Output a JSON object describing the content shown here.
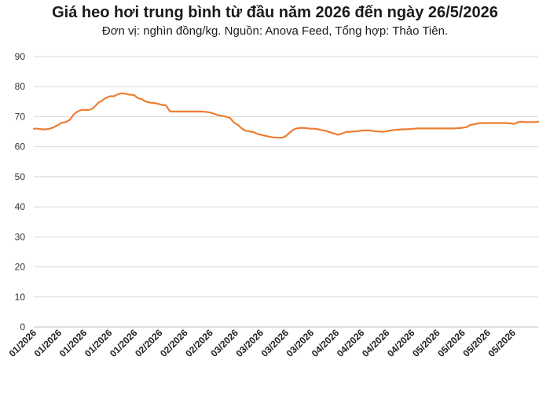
{
  "chart_data": {
    "type": "line",
    "title": "Giá heo hơi trung bình từ đầu năm 2026 đến ngày 26/5/2026",
    "subtitle": "Đơn vị: nghìn đồng/kg. Nguồn: Anova Feed, Tổng hợp: Thảo Tiên.",
    "xlabel": "",
    "ylabel": "",
    "ylim": [
      0,
      90
    ],
    "yticks": [
      0,
      10,
      20,
      30,
      40,
      50,
      60,
      70,
      80,
      90
    ],
    "xtick_labels": [
      "01/2026",
      "01/2026",
      "01/2026",
      "01/2026",
      "01/2026",
      "02/2026",
      "02/2026",
      "02/2026",
      "03/2026",
      "03/2026",
      "03/2026",
      "03/2026",
      "04/2026",
      "04/2026",
      "04/2026",
      "04/2026",
      "05/2026",
      "05/2026",
      "05/2026",
      "05/2026"
    ],
    "grid": "horizontal",
    "line_color": "#ED7D31",
    "grid_color": "#d9d9d9",
    "series": [
      {
        "values": [
          66.0,
          66.0,
          65.8,
          65.8,
          66.0,
          66.5,
          67.2,
          68.0,
          68.2,
          69.0,
          70.8,
          71.8,
          72.3,
          72.2,
          72.3,
          73.0,
          74.5,
          75.3,
          76.3,
          76.8,
          76.8,
          77.5,
          77.8,
          77.6,
          77.3,
          77.2,
          76.2,
          75.8,
          75.0,
          74.7,
          74.6,
          74.3,
          73.9,
          73.8,
          71.8,
          71.7,
          71.7,
          71.7,
          71.7,
          71.7,
          71.7,
          71.7,
          71.7,
          71.6,
          71.4,
          71.0,
          70.5,
          70.3,
          70.0,
          69.6,
          68.0,
          67.2,
          66.0,
          65.3,
          65.1,
          64.8,
          64.2,
          63.9,
          63.6,
          63.3,
          63.1,
          63.0,
          63.0,
          63.6,
          64.8,
          65.8,
          66.2,
          66.3,
          66.2,
          66.0,
          66.0,
          65.8,
          65.5,
          65.3,
          64.8,
          64.4,
          64.0,
          64.4,
          64.9,
          65.0,
          65.1,
          65.2,
          65.4,
          65.4,
          65.4,
          65.2,
          65.1,
          65.0,
          65.1,
          65.4,
          65.6,
          65.7,
          65.8,
          65.8,
          65.9,
          66.0,
          66.1,
          66.1,
          66.1,
          66.1,
          66.1,
          66.1,
          66.1,
          66.1,
          66.1,
          66.1,
          66.2,
          66.3,
          66.5,
          67.2,
          67.5,
          67.8,
          67.9,
          67.9,
          67.9,
          67.9,
          67.9,
          67.9,
          67.9,
          67.8,
          67.6,
          68.2,
          68.3,
          68.2,
          68.2,
          68.2,
          68.3
        ]
      }
    ]
  }
}
